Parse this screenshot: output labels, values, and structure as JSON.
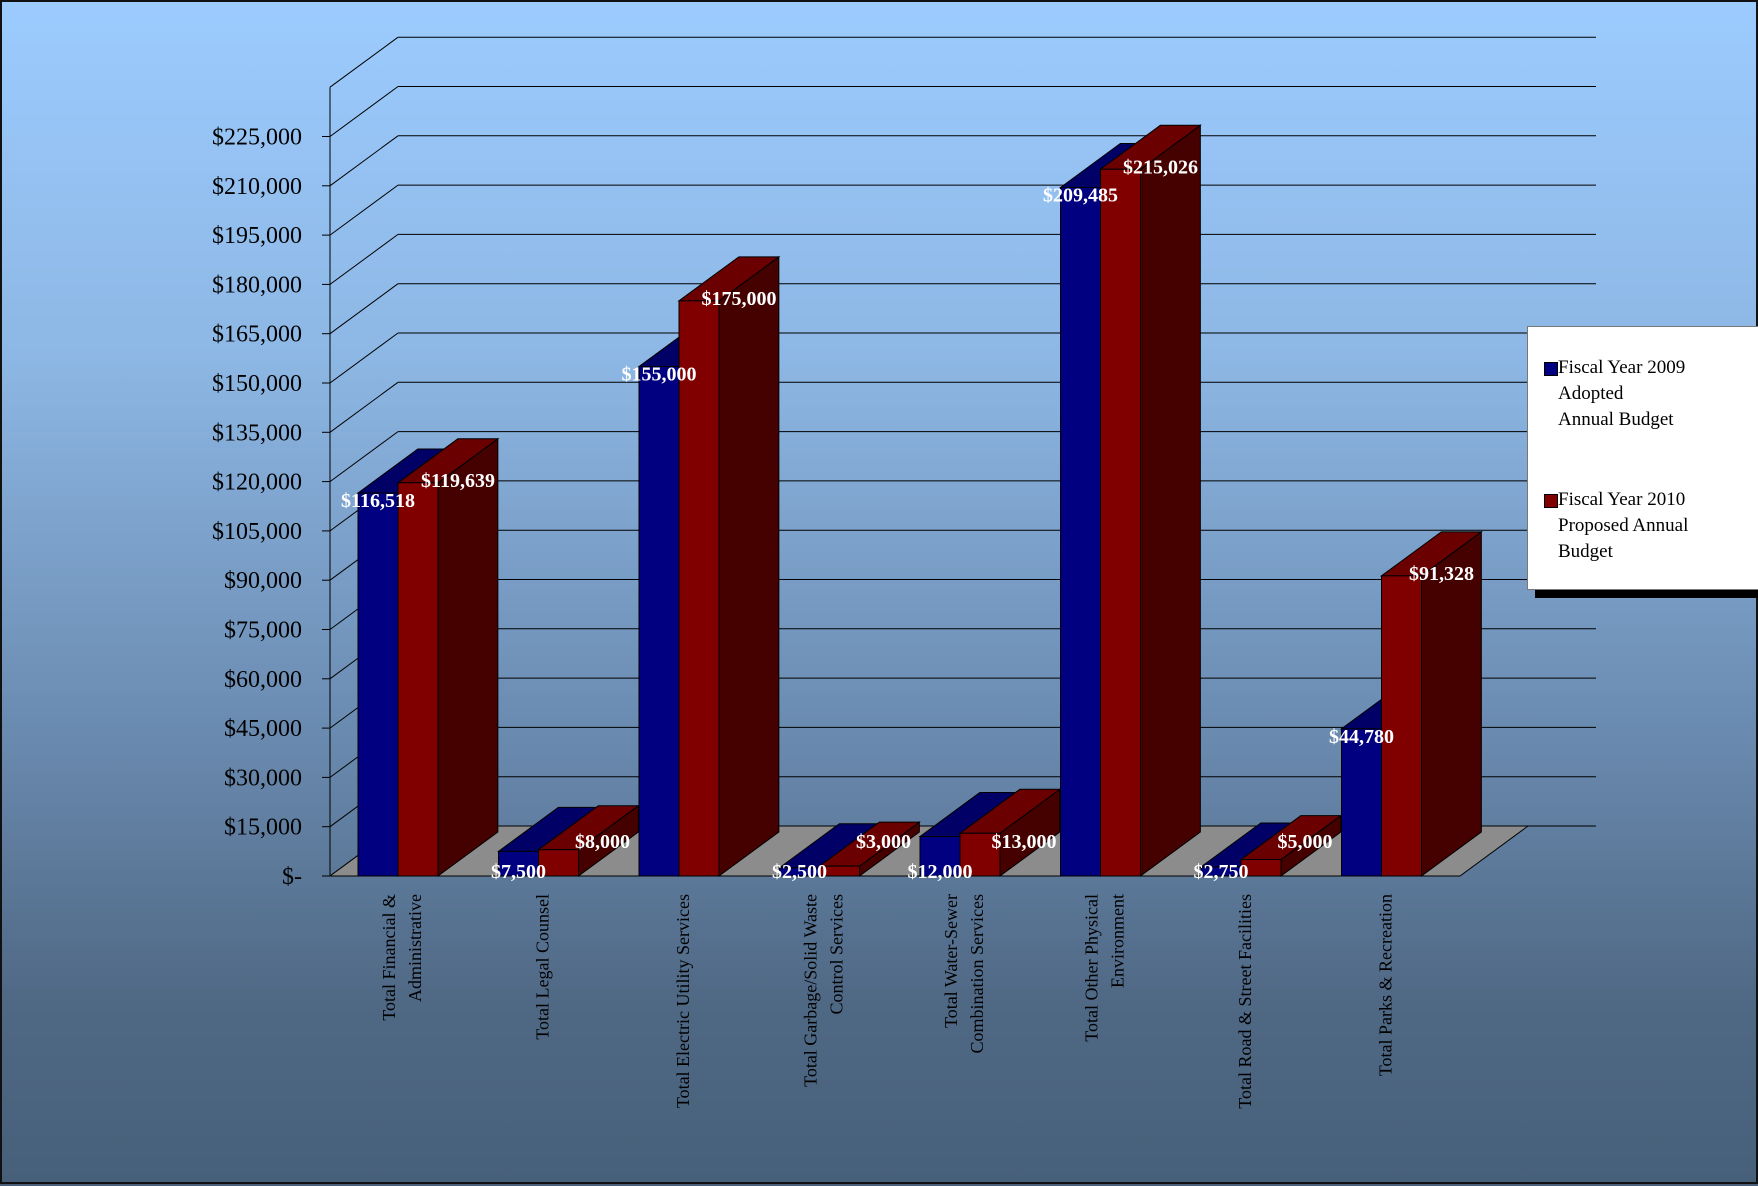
{
  "chart_data": {
    "type": "bar",
    "title": "",
    "xlabel": "",
    "ylabel": "",
    "ylim": [
      0,
      240000
    ],
    "ytick_step": 15000,
    "y_tick_labels": [
      "$-",
      "$15,000",
      "$30,000",
      "$45,000",
      "$60,000",
      "$75,000",
      "$90,000",
      "$105,000",
      "$120,000",
      "$135,000",
      "$150,000",
      "$165,000",
      "$180,000",
      "$195,000",
      "$210,000",
      "$225,000"
    ],
    "grid": true,
    "legend_position": "right",
    "categories": [
      "Total Financial &\nAdministrative",
      "Total Legal Counsel",
      "Total Electric Utility Services",
      "Total Garbage/Solid Waste\nControl Services",
      "Total Water-Sewer\nCombination Services",
      "Total Other Physical\nEnvironment",
      "Total Road & Street Facilities",
      "Total Parks & Recreation"
    ],
    "series": [
      {
        "name": "Fiscal Year 2009\nAdopted\nAnnual Budget",
        "color": "#000080",
        "values": [
          116518,
          7500,
          155000,
          2500,
          12000,
          209485,
          2750,
          44780
        ],
        "labels": [
          "$116,518",
          "$7,500",
          "$155,000",
          "$2,500",
          "$12,000",
          "$209,485",
          "$2,750",
          "$44,780"
        ]
      },
      {
        "name": "Fiscal Year 2010\nProposed Annual\nBudget",
        "color": "#800000",
        "values": [
          119639,
          8000,
          175000,
          3000,
          13000,
          215026,
          5000,
          91328
        ],
        "labels": [
          "$119,639",
          "$8,000",
          "$175,000",
          "$3,000",
          "$13,000",
          "$215,026",
          "$5,000",
          "$91,328"
        ]
      }
    ]
  },
  "colors": {
    "series1_front": "#000080",
    "series1_top": "#000066",
    "series1_side": "#00004a",
    "series2_front": "#800000",
    "series2_top": "#6b0000",
    "series2_side": "#450000",
    "floor": "#8c8c8c",
    "gridline": "#000000"
  }
}
